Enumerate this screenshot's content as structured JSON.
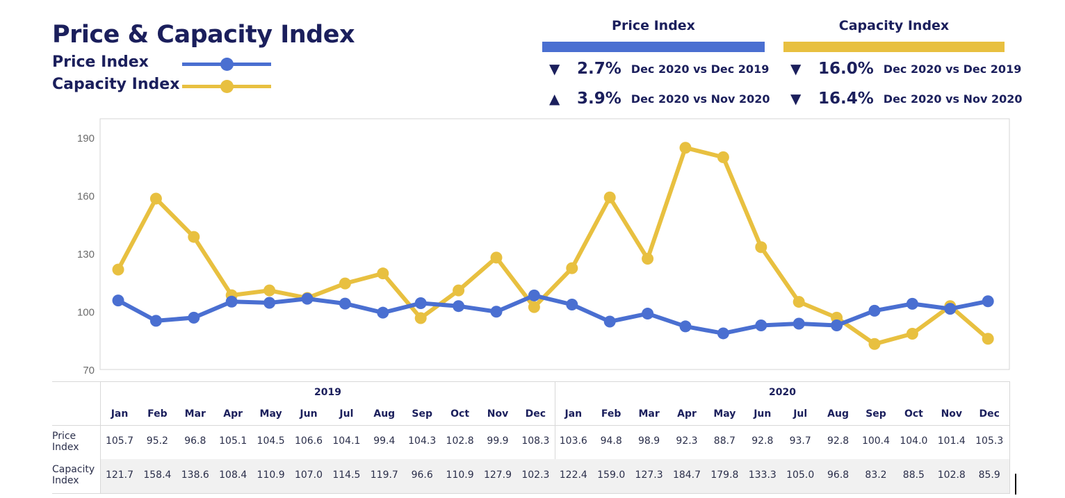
{
  "title": "Price & Capacity Index",
  "legend": [
    {
      "label": "Price Index",
      "color": "#4a6fd1"
    },
    {
      "label": "Capacity Index",
      "color": "#e8c040"
    }
  ],
  "kpis": [
    {
      "header": "Price Index",
      "color": "#4a6fd1",
      "rows": [
        {
          "arrow": "down",
          "glyph": "▼",
          "value": "2.7%",
          "desc": "Dec 2020 vs Dec 2019"
        },
        {
          "arrow": "up",
          "glyph": "▲",
          "value": "3.9%",
          "desc": "Dec 2020 vs Nov 2020"
        }
      ]
    },
    {
      "header": "Capacity Index",
      "color": "#e8c040",
      "rows": [
        {
          "arrow": "down",
          "glyph": "▼",
          "value": "16.0%",
          "desc": "Dec 2020 vs Dec 2019"
        },
        {
          "arrow": "down",
          "glyph": "▼",
          "value": "16.4%",
          "desc": "Dec 2020 vs Nov 2020"
        }
      ]
    }
  ],
  "table": {
    "years": [
      "2019",
      "2020"
    ],
    "months": [
      "Jan",
      "Feb",
      "Mar",
      "Apr",
      "May",
      "Jun",
      "Jul",
      "Aug",
      "Sep",
      "Oct",
      "Nov",
      "Dec",
      "Jan",
      "Feb",
      "Mar",
      "Apr",
      "May",
      "Jun",
      "Jul",
      "Aug",
      "Sep",
      "Oct",
      "Nov",
      "Dec"
    ],
    "rows": [
      {
        "label_line1": "Price",
        "label_line2": "Index",
        "values": [
          "105.7",
          "95.2",
          "96.8",
          "105.1",
          "104.5",
          "106.6",
          "104.1",
          "99.4",
          "104.3",
          "102.8",
          "99.9",
          "108.3",
          "103.6",
          "94.8",
          "98.9",
          "92.3",
          "88.7",
          "92.8",
          "93.7",
          "92.8",
          "100.4",
          "104.0",
          "101.4",
          "105.3"
        ]
      },
      {
        "label_line1": "Capacity",
        "label_line2": "Index",
        "values": [
          "121.7",
          "158.4",
          "138.6",
          "108.4",
          "110.9",
          "107.0",
          "114.5",
          "119.7",
          "96.6",
          "110.9",
          "127.9",
          "102.3",
          "122.4",
          "159.0",
          "127.3",
          "184.7",
          "179.8",
          "133.3",
          "105.0",
          "96.8",
          "83.2",
          "88.5",
          "102.8",
          "85.9"
        ]
      }
    ]
  },
  "chart_data": {
    "type": "line",
    "categories": [
      "Jan 2019",
      "Feb 2019",
      "Mar 2019",
      "Apr 2019",
      "May 2019",
      "Jun 2019",
      "Jul 2019",
      "Aug 2019",
      "Sep 2019",
      "Oct 2019",
      "Nov 2019",
      "Dec 2019",
      "Jan 2020",
      "Feb 2020",
      "Mar 2020",
      "Apr 2020",
      "May 2020",
      "Jun 2020",
      "Jul 2020",
      "Aug 2020",
      "Sep 2020",
      "Oct 2020",
      "Nov 2020",
      "Dec 2020"
    ],
    "series": [
      {
        "name": "Price Index",
        "color": "#4a6fd1",
        "values": [
          105.7,
          95.2,
          96.8,
          105.1,
          104.5,
          106.6,
          104.1,
          99.4,
          104.3,
          102.8,
          99.9,
          108.3,
          103.6,
          94.8,
          98.9,
          92.3,
          88.7,
          92.8,
          93.7,
          92.8,
          100.4,
          104.0,
          101.4,
          105.3
        ]
      },
      {
        "name": "Capacity Index",
        "color": "#e8c040",
        "values": [
          121.7,
          158.4,
          138.6,
          108.4,
          110.9,
          107.0,
          114.5,
          119.7,
          96.6,
          110.9,
          127.9,
          102.3,
          122.4,
          159.0,
          127.3,
          184.7,
          179.8,
          133.3,
          105.0,
          96.8,
          83.2,
          88.5,
          102.8,
          85.9
        ]
      }
    ],
    "yticks": [
      "70",
      "100",
      "130",
      "160",
      "190"
    ],
    "ylim": [
      70,
      200
    ],
    "grid": false,
    "title": "Price & Capacity Index",
    "xlabel": "",
    "ylabel": ""
  }
}
